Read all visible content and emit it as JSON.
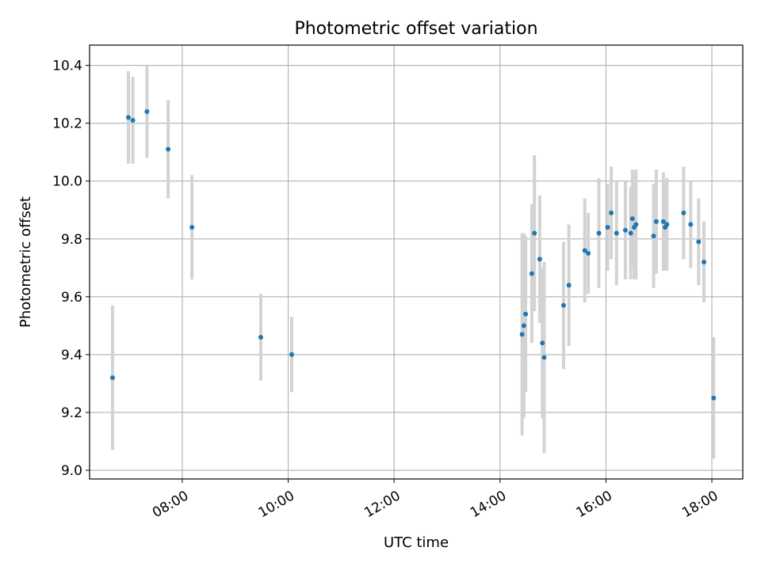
{
  "chart_data": {
    "type": "scatter",
    "title": "Photometric offset variation",
    "xlabel": "UTC time",
    "ylabel": "Photometric offset",
    "x_tick_labels": [
      "08:00",
      "10:00",
      "12:00",
      "14:00",
      "16:00",
      "18:00"
    ],
    "y_tick_labels": [
      "9.0",
      "9.2",
      "9.4",
      "9.6",
      "9.8",
      "10.0",
      "10.2",
      "10.4"
    ],
    "xlim": [
      "06:15",
      "18:35"
    ],
    "ylim": [
      8.97,
      10.47
    ],
    "grid": true,
    "legend": "none",
    "colors": {
      "marker": "#1f77b4",
      "errorbar": "#d3d3d3",
      "grid": "#b0b0b0"
    },
    "series": [
      {
        "points": [
          {
            "x": "06:41",
            "y": 9.32,
            "err": 0.25
          },
          {
            "x": "06:59",
            "y": 10.22,
            "err": 0.16
          },
          {
            "x": "07:04",
            "y": 10.21,
            "err": 0.15
          },
          {
            "x": "07:20",
            "y": 10.24,
            "err": 0.16
          },
          {
            "x": "07:44",
            "y": 10.11,
            "err": 0.17
          },
          {
            "x": "08:11",
            "y": 9.84,
            "err": 0.18
          },
          {
            "x": "09:29",
            "y": 9.46,
            "err": 0.15
          },
          {
            "x": "10:04",
            "y": 9.4,
            "err": 0.13
          },
          {
            "x": "14:25",
            "y": 9.47,
            "err": 0.35
          },
          {
            "x": "14:27",
            "y": 9.5,
            "err": 0.32
          },
          {
            "x": "14:29",
            "y": 9.54,
            "err": 0.27
          },
          {
            "x": "14:36",
            "y": 9.68,
            "err": 0.24
          },
          {
            "x": "14:39",
            "y": 9.82,
            "err": 0.27
          },
          {
            "x": "14:45",
            "y": 9.73,
            "err": 0.22
          },
          {
            "x": "14:48",
            "y": 9.44,
            "err": 0.26
          },
          {
            "x": "14:50",
            "y": 9.39,
            "err": 0.33
          },
          {
            "x": "15:12",
            "y": 9.57,
            "err": 0.22
          },
          {
            "x": "15:18",
            "y": 9.64,
            "err": 0.21
          },
          {
            "x": "15:36",
            "y": 9.76,
            "err": 0.18
          },
          {
            "x": "15:40",
            "y": 9.75,
            "err": 0.14
          },
          {
            "x": "15:52",
            "y": 9.82,
            "err": 0.19
          },
          {
            "x": "16:02",
            "y": 9.84,
            "err": 0.15
          },
          {
            "x": "16:06",
            "y": 9.89,
            "err": 0.16
          },
          {
            "x": "16:12",
            "y": 9.82,
            "err": 0.18
          },
          {
            "x": "16:22",
            "y": 9.83,
            "err": 0.17
          },
          {
            "x": "16:28",
            "y": 9.82,
            "err": 0.16
          },
          {
            "x": "16:30",
            "y": 9.87,
            "err": 0.17
          },
          {
            "x": "16:32",
            "y": 9.84,
            "err": 0.18
          },
          {
            "x": "16:34",
            "y": 9.85,
            "err": 0.19
          },
          {
            "x": "16:54",
            "y": 9.81,
            "err": 0.18
          },
          {
            "x": "16:57",
            "y": 9.86,
            "err": 0.18
          },
          {
            "x": "17:05",
            "y": 9.86,
            "err": 0.17
          },
          {
            "x": "17:07",
            "y": 9.84,
            "err": 0.15
          },
          {
            "x": "17:09",
            "y": 9.85,
            "err": 0.16
          },
          {
            "x": "17:28",
            "y": 9.89,
            "err": 0.16
          },
          {
            "x": "17:36",
            "y": 9.85,
            "err": 0.15
          },
          {
            "x": "17:45",
            "y": 9.79,
            "err": 0.15
          },
          {
            "x": "17:51",
            "y": 9.72,
            "err": 0.14
          },
          {
            "x": "18:02",
            "y": 9.25,
            "err": 0.21
          }
        ]
      }
    ]
  }
}
